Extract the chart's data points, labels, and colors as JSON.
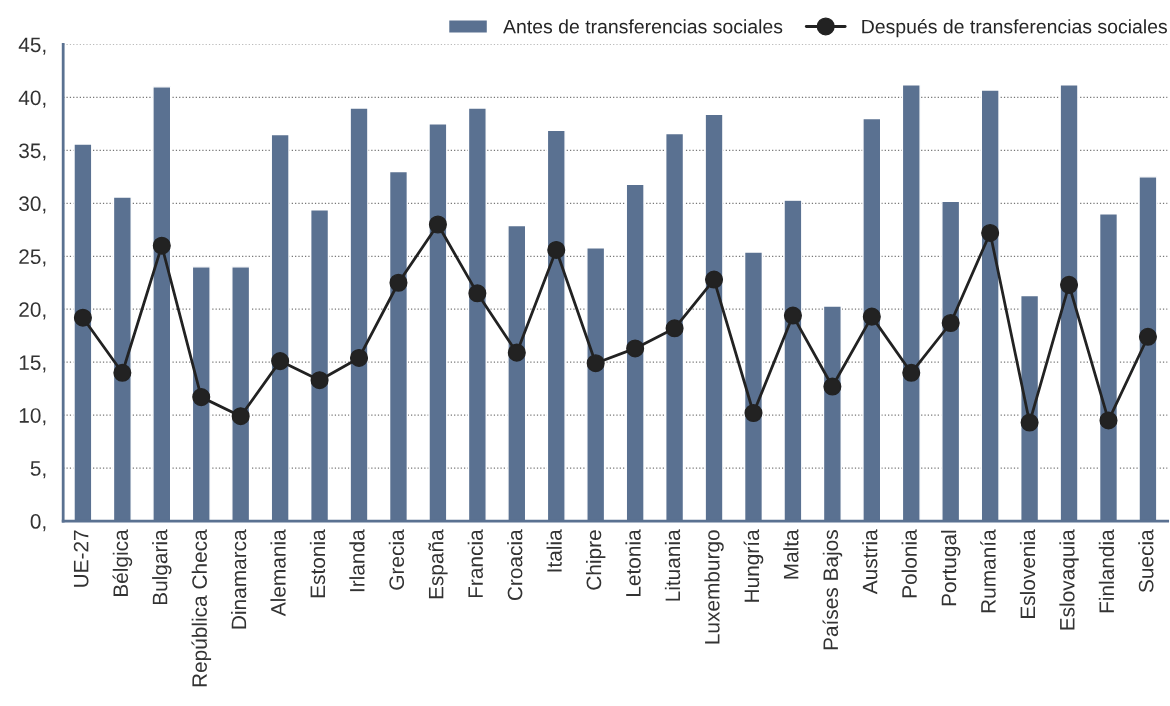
{
  "chart_data": {
    "type": "bar",
    "categories": [
      "UE-27",
      "Bélgica",
      "Bulgaria",
      "República Checa",
      "Dinamarca",
      "Alemania",
      "Estonia",
      "Irlanda",
      "Grecia",
      "España",
      "Francia",
      "Croacia",
      "Italia",
      "Chipre",
      "Letonia",
      "Lituania",
      "Luxemburgo",
      "Hungría",
      "Malta",
      "Países Bajos",
      "Austria",
      "Polonia",
      "Portugal",
      "Rumanía",
      "Eslovenia",
      "Eslovaquia",
      "Finlandia",
      "Suecia"
    ],
    "series": [
      {
        "name": "Antes de transferencias sociales",
        "color": "#5a7191",
        "values": [
          35.6,
          30.6,
          41.0,
          24.0,
          24.0,
          36.5,
          29.4,
          39.0,
          33.0,
          37.5,
          39.0,
          27.9,
          36.9,
          25.8,
          31.8,
          36.6,
          38.4,
          25.4,
          30.3,
          20.3,
          38.0,
          41.2,
          30.2,
          40.7,
          21.3,
          41.2,
          29.0,
          32.5
        ]
      },
      {
        "name": "Después de transferencias sociales",
        "type": "line",
        "color": "#222222",
        "marker": "circle",
        "values": [
          19.2,
          14.0,
          26.0,
          11.7,
          9.9,
          15.1,
          13.3,
          15.4,
          22.5,
          28.0,
          21.5,
          15.9,
          25.6,
          14.9,
          16.3,
          18.2,
          22.8,
          10.2,
          19.4,
          12.7,
          19.3,
          14.0,
          18.7,
          27.2,
          9.3,
          22.3,
          9.5,
          17.4
        ]
      }
    ],
    "ylim": [
      0,
      45
    ],
    "yticks": [
      {
        "value": 0,
        "label": "0,"
      },
      {
        "value": 5,
        "label": "5,"
      },
      {
        "value": 10,
        "label": "10,"
      },
      {
        "value": 15,
        "label": "15,"
      },
      {
        "value": 20,
        "label": "20,"
      },
      {
        "value": 25,
        "label": "25,"
      },
      {
        "value": 30,
        "label": "30,"
      },
      {
        "value": 35,
        "label": "35,"
      },
      {
        "value": 40,
        "label": "40,"
      },
      {
        "value": 45,
        "label": "45,"
      }
    ],
    "grid": "y",
    "legend": "top right"
  }
}
